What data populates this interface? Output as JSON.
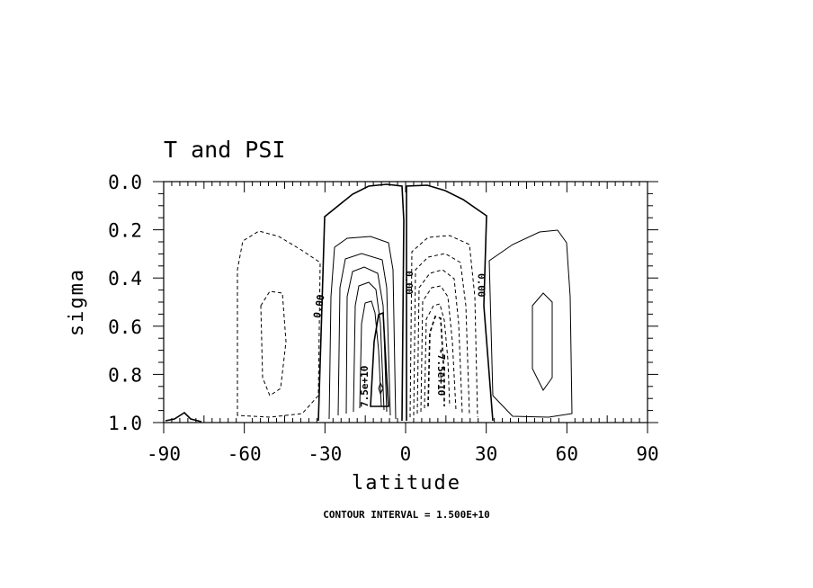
{
  "chart_data": {
    "type": "contour",
    "title": "T and PSI",
    "xlabel": "latitude",
    "ylabel": "sigma",
    "xlim": [
      -90,
      90
    ],
    "ylim": [
      0.0,
      1.0
    ],
    "y_inverted": true,
    "x_ticks": [
      -90,
      -60,
      -30,
      0,
      30,
      60,
      90
    ],
    "x_tick_labels": [
      "-90",
      "-60",
      "-30",
      "0",
      "30",
      "60",
      "90"
    ],
    "y_ticks": [
      0.0,
      0.2,
      0.4,
      0.6,
      0.8,
      1.0
    ],
    "y_tick_labels": [
      "0.0",
      "0.2",
      "0.4",
      "0.6",
      "0.8",
      "1.0"
    ],
    "contour_interval_note": "CONTOUR INTERVAL = 1.500E+10",
    "contour_interval": 15000000000.0,
    "negative_contours": "dashed",
    "zero_contour": "thick",
    "contour_labels": [
      {
        "text": "0.00",
        "lat": -31,
        "sigma": 0.52,
        "rotation": -80
      },
      {
        "text": "7.5e+10",
        "lat": -14,
        "sigma": 0.85,
        "rotation": -90
      },
      {
        "text": "0.00",
        "lat": 0,
        "sigma": 0.42,
        "rotation": 90
      },
      {
        "text": "-7.5e+10",
        "lat": 12,
        "sigma": 0.79,
        "rotation": 90
      },
      {
        "text": "0.00",
        "lat": 27,
        "sigma": 0.43,
        "rotation": 90
      }
    ],
    "cells": [
      {
        "name": "positive cell NH-side tropics",
        "lat_center": -12,
        "sigma_center": 0.65,
        "sign": "positive",
        "peak_label": "7.5e+10"
      },
      {
        "name": "negative cell",
        "lat_center": 10,
        "sigma_center": 0.62,
        "sign": "negative",
        "peak_label": "-7.5e+10"
      },
      {
        "name": "negative cell midlatitude",
        "lat_center": -50,
        "sigma_center": 0.6,
        "sign": "negative"
      },
      {
        "name": "positive cell midlatitude",
        "lat_center": 50,
        "sigma_center": 0.6,
        "sign": "positive"
      }
    ]
  }
}
